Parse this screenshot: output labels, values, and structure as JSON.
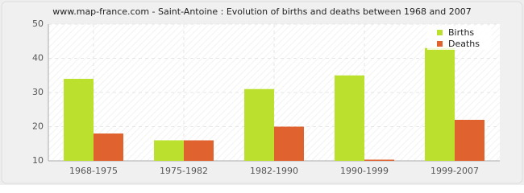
{
  "chart_data": {
    "type": "bar",
    "title": "www.map-france.com - Saint-Antoine : Evolution of births and deaths between 1968 and 2007",
    "categories": [
      "1968-1975",
      "1975-1982",
      "1982-1990",
      "1990-1999",
      "1999-2007"
    ],
    "series": [
      {
        "name": "Births",
        "color": "#bbe02e",
        "values": [
          34,
          16,
          31,
          35,
          43
        ]
      },
      {
        "name": "Deaths",
        "color": "#e0632f",
        "values": [
          18,
          16,
          20,
          10,
          22
        ]
      }
    ],
    "ylim": [
      10,
      50
    ],
    "yticks": [
      10,
      20,
      30,
      40,
      50
    ],
    "grid": true,
    "legend": "top-right"
  }
}
